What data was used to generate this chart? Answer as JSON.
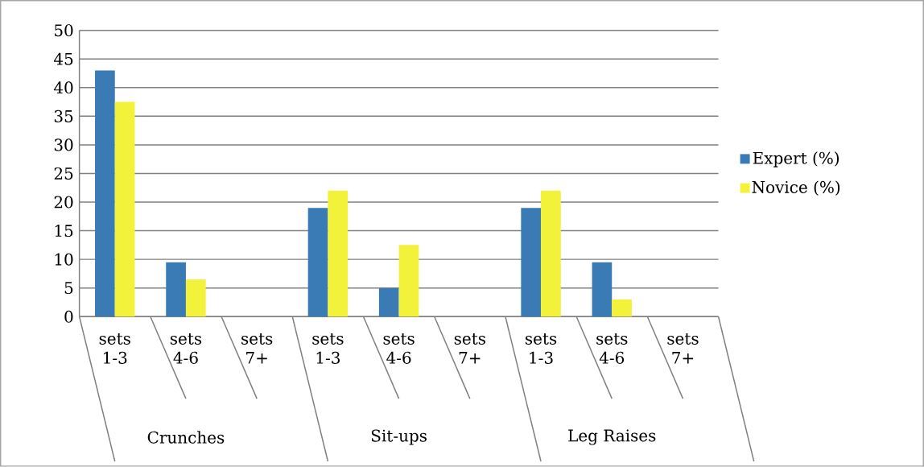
{
  "chart_data": {
    "type": "bar",
    "categories": [
      "sets 1-3",
      "sets 4-6",
      "sets 7+",
      "sets 1-3",
      "sets 4-6",
      "sets 7+",
      "sets 1-3",
      "sets 4-6",
      "sets 7+"
    ],
    "series": [
      {
        "name": "Expert (%)",
        "color": "#3b7bb5",
        "values": [
          43,
          9.5,
          0,
          19,
          5,
          0,
          19,
          9.5,
          0
        ]
      },
      {
        "name": "Novice (%)",
        "color": "#f2f23a",
        "values": [
          37.5,
          6.5,
          0,
          22,
          12.5,
          0,
          22,
          3,
          0
        ]
      }
    ],
    "annotations": [
      "Crunches",
      "Sit-ups",
      "Leg Raises"
    ],
    "ylim": [
      0,
      50
    ],
    "yticks": [
      0,
      5,
      10,
      15,
      20,
      25,
      30,
      35,
      40,
      45,
      50
    ],
    "grid": "y",
    "legend": "right"
  }
}
